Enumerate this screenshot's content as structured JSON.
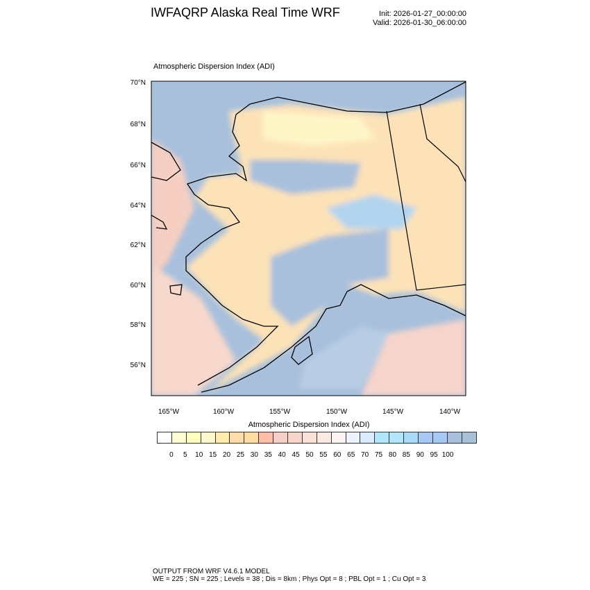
{
  "header": {
    "title": "IWFAQRP Alaska Real Time WRF",
    "init": "Init: 2026-01-27_00:00:00",
    "valid": "Valid: 2026-01-30_06:00:00"
  },
  "plot": {
    "subtitle": "Atmospheric Dispersion Index   (ADI)",
    "lat_labels": [
      "70°N",
      "68°N",
      "66°N",
      "64°N",
      "62°N",
      "60°N",
      "58°N",
      "56°N"
    ],
    "lon_labels": [
      "165°W",
      "160°W",
      "155°W",
      "150°W",
      "145°W",
      "140°W"
    ]
  },
  "colorbar": {
    "title": "Atmospheric Dispersion Index  (ADI)",
    "labels": [
      "0",
      "5",
      "10",
      "15",
      "20",
      "25",
      "30",
      "35",
      "40",
      "45",
      "50",
      "55",
      "60",
      "65",
      "70",
      "75",
      "80",
      "85",
      "90",
      "95",
      "100"
    ],
    "colors": [
      "#ffffff",
      "#fffdd4",
      "#ffffc2",
      "#fff8cc",
      "#ffecac",
      "#ffdcaa",
      "#ffdca2",
      "#ffbca6",
      "#f6d0c8",
      "#f6d4cc",
      "#f8e2d8",
      "#fbeae4",
      "#fff4f4",
      "#eef4ff",
      "#daecfd",
      "#b2e6fa",
      "#b2e6fa",
      "#a8daf8",
      "#a8c8f4",
      "#a8c8f4",
      "#a8c0dc",
      "#a8c0d8"
    ]
  },
  "footer": {
    "line1": "OUTPUT FROM WRF V4.6.1 MODEL",
    "line2": "WE = 225 ; SN = 225 ; Levels = 38 ; Dis = 8km ; Phys Opt = 8 ; PBL Opt = 1 ; Cu Opt = 3"
  }
}
